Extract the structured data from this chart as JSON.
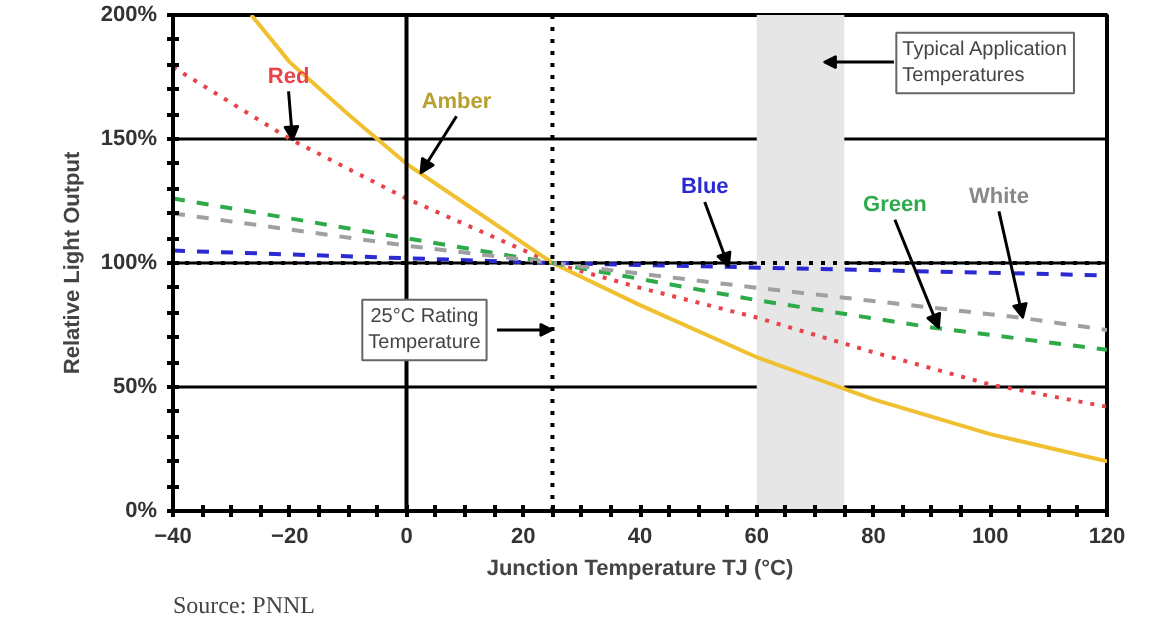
{
  "chart_data": {
    "type": "line",
    "xlabel": "Junction Temperature TJ (°C)",
    "ylabel": "Relative Light Output",
    "xlim": [
      -40,
      120
    ],
    "ylim": [
      0,
      200
    ],
    "xticks": [
      -40,
      -20,
      0,
      20,
      40,
      60,
      80,
      100,
      120
    ],
    "yticks": [
      {
        "value": 0,
        "label": "0%"
      },
      {
        "value": 50,
        "label": "50%"
      },
      {
        "value": 100,
        "label": "100%"
      },
      {
        "value": 150,
        "label": "150%"
      },
      {
        "value": 200,
        "label": "200%"
      }
    ],
    "grid": "y",
    "marker": "none",
    "series": [
      {
        "name": "Red",
        "color": "#e8424a",
        "line_style": "dotted",
        "x": [
          -40,
          -20,
          0,
          25,
          40,
          60,
          80,
          100,
          120
        ],
        "values": [
          179,
          150,
          126,
          100,
          90,
          78,
          64,
          51,
          42
        ]
      },
      {
        "name": "Amber",
        "color": "#f0c030",
        "line_style": "solid",
        "x": [
          -26.6,
          -20,
          -10,
          0,
          10,
          25,
          40,
          60,
          80,
          100,
          120
        ],
        "values": [
          200,
          181,
          160,
          140,
          124,
          100,
          83,
          62,
          45,
          31,
          20
        ]
      },
      {
        "name": "Blue",
        "color": "#2a2ad0",
        "line_style": "dashed",
        "x": [
          -40,
          25,
          120
        ],
        "values": [
          105,
          100,
          95
        ]
      },
      {
        "name": "Green",
        "color": "#2eaa4a",
        "line_style": "dashed",
        "x": [
          -40,
          0,
          25,
          60,
          90,
          120
        ],
        "values": [
          126,
          110,
          100,
          85,
          74,
          65
        ]
      },
      {
        "name": "White",
        "color": "#a0a0a0",
        "line_style": "dashed",
        "x": [
          -40,
          0,
          25,
          60,
          105,
          120
        ],
        "values": [
          120,
          107,
          100,
          90,
          78,
          73
        ]
      }
    ],
    "ref_lines": [
      {
        "axis": "x",
        "value": 0,
        "color": "#000000",
        "line_style": "solid"
      },
      {
        "axis": "x",
        "value": 25,
        "label": "25°C Rating Temperature",
        "color": "#000000",
        "line_style": "dotted"
      },
      {
        "axis": "y",
        "value": 100,
        "color": "#000000",
        "line_style": "dotted"
      }
    ],
    "bands": [
      {
        "axis": "x",
        "from": 60,
        "to": 75,
        "label": "Typical Application Temperatures",
        "color": "#e6e6e6"
      }
    ],
    "annotations": [
      "Source: PNNL"
    ]
  }
}
